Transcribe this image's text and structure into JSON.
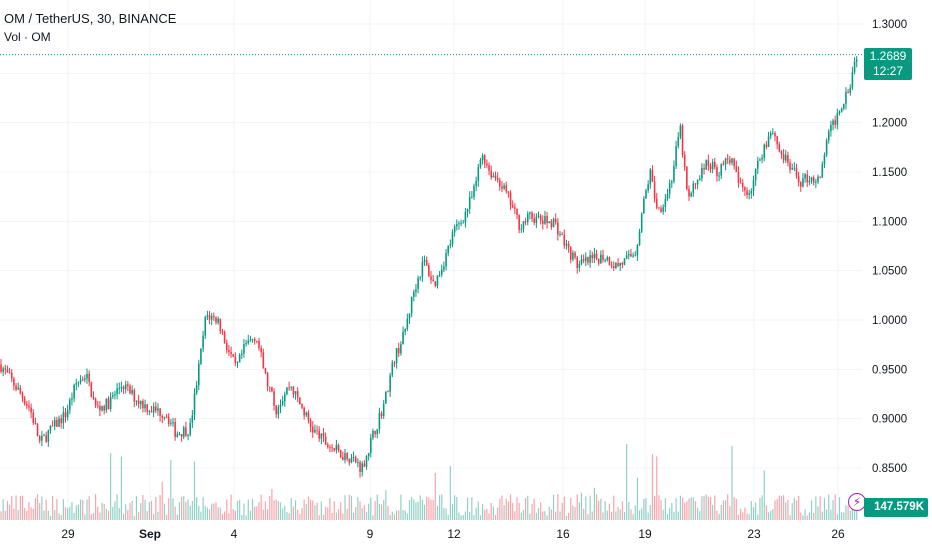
{
  "header": {
    "symbol": "OM / TetherUS, 30, BINANCE",
    "volume_label": "Vol · OM"
  },
  "last_price": {
    "value": "1.2689",
    "countdown": "12:27"
  },
  "volume_badge": "147.579K",
  "colors": {
    "up": "#089981",
    "down": "#f23645",
    "grid": "#f0f3fa",
    "last_line": "#089981"
  },
  "chart_data": {
    "type": "candlestick",
    "title": "OM / TetherUS, 30, BINANCE",
    "y_axis": {
      "ticks": [
        "1.3000",
        "1.2500",
        "1.2000",
        "1.1500",
        "1.1000",
        "1.0500",
        "1.0000",
        "0.9500",
        "0.9000",
        "0.8500"
      ],
      "range": [
        0.82,
        1.31
      ]
    },
    "x_axis": {
      "ticks": [
        "29",
        "Sep",
        "4",
        "9",
        "12",
        "16",
        "19",
        "23",
        "26"
      ]
    },
    "grid": true,
    "close_path": [
      [
        0,
        0.955
      ],
      [
        14,
        0.935
      ],
      [
        24,
        0.92
      ],
      [
        30,
        0.91
      ],
      [
        40,
        0.875
      ],
      [
        52,
        0.89
      ],
      [
        66,
        0.905
      ],
      [
        76,
        0.935
      ],
      [
        86,
        0.945
      ],
      [
        96,
        0.91
      ],
      [
        108,
        0.915
      ],
      [
        122,
        0.935
      ],
      [
        136,
        0.92
      ],
      [
        150,
        0.91
      ],
      [
        166,
        0.905
      ],
      [
        176,
        0.885
      ],
      [
        190,
        0.89
      ],
      [
        200,
        0.96
      ],
      [
        206,
        1.005
      ],
      [
        218,
        1.0
      ],
      [
        226,
        0.975
      ],
      [
        236,
        0.95
      ],
      [
        246,
        0.975
      ],
      [
        256,
        0.985
      ],
      [
        266,
        0.94
      ],
      [
        276,
        0.91
      ],
      [
        290,
        0.935
      ],
      [
        300,
        0.915
      ],
      [
        312,
        0.89
      ],
      [
        326,
        0.875
      ],
      [
        340,
        0.865
      ],
      [
        352,
        0.86
      ],
      [
        362,
        0.85
      ],
      [
        372,
        0.88
      ],
      [
        384,
        0.915
      ],
      [
        394,
        0.96
      ],
      [
        404,
        0.985
      ],
      [
        414,
        1.03
      ],
      [
        424,
        1.06
      ],
      [
        434,
        1.035
      ],
      [
        444,
        1.06
      ],
      [
        454,
        1.09
      ],
      [
        464,
        1.105
      ],
      [
        474,
        1.13
      ],
      [
        482,
        1.17
      ],
      [
        490,
        1.15
      ],
      [
        500,
        1.14
      ],
      [
        510,
        1.12
      ],
      [
        520,
        1.095
      ],
      [
        530,
        1.105
      ],
      [
        542,
        1.1
      ],
      [
        554,
        1.1
      ],
      [
        566,
        1.075
      ],
      [
        578,
        1.055
      ],
      [
        590,
        1.06
      ],
      [
        604,
        1.065
      ],
      [
        616,
        1.055
      ],
      [
        626,
        1.06
      ],
      [
        636,
        1.07
      ],
      [
        642,
        1.11
      ],
      [
        650,
        1.15
      ],
      [
        658,
        1.11
      ],
      [
        666,
        1.125
      ],
      [
        672,
        1.145
      ],
      [
        680,
        1.195
      ],
      [
        688,
        1.12
      ],
      [
        698,
        1.145
      ],
      [
        708,
        1.16
      ],
      [
        718,
        1.15
      ],
      [
        730,
        1.165
      ],
      [
        740,
        1.135
      ],
      [
        750,
        1.13
      ],
      [
        760,
        1.165
      ],
      [
        772,
        1.195
      ],
      [
        780,
        1.17
      ],
      [
        790,
        1.155
      ],
      [
        800,
        1.14
      ],
      [
        810,
        1.145
      ],
      [
        820,
        1.14
      ],
      [
        826,
        1.18
      ],
      [
        834,
        1.2
      ],
      [
        842,
        1.22
      ],
      [
        850,
        1.24
      ],
      [
        856,
        1.269
      ]
    ],
    "volume": {
      "last": "147.579K"
    },
    "last_price": 1.2689
  }
}
